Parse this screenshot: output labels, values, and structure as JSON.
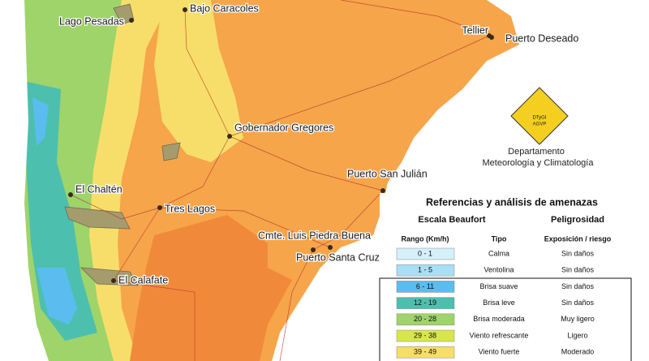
{
  "places": [
    {
      "label": "Lago Pesadas"
    },
    {
      "label": "Bajo Caracoles"
    },
    {
      "label": "Tellier"
    },
    {
      "label": "Puerto Deseado"
    },
    {
      "label": "Gobernador Gregores"
    },
    {
      "label": "Puerto San Julián"
    },
    {
      "label": "El Chaltén"
    },
    {
      "label": "Tres Lagos"
    },
    {
      "label": "Cmte. Luis Piedra Buena"
    },
    {
      "label": "Puerto Santa Cruz"
    },
    {
      "label": "El Calafate"
    }
  ],
  "logo": {
    "lines": [
      "DTyGI",
      "AGVP"
    ]
  },
  "department": {
    "lines": [
      "Departamento",
      "Meteorología y Climatología"
    ]
  },
  "legend": {
    "title": "Referencias y análisis de amenazas",
    "scale_heading": "Escala Beaufort",
    "danger_heading": "Peligrosidad",
    "columns": [
      "Rango (Km/h)",
      "Tipo",
      "Exposición / riesgo"
    ],
    "rows": [
      {
        "range": "0 - 1",
        "type": "Calma",
        "risk": "Sin daños",
        "color": "#d6f0fa"
      },
      {
        "range": "1 - 5",
        "type": "Ventolina",
        "risk": "Sin daños",
        "color": "#a9def5"
      },
      {
        "range": "6 - 11",
        "type": "Brisa suave",
        "risk": "Sin daños",
        "color": "#5bbcef"
      },
      {
        "range": "12 - 19",
        "type": "Brisa leve",
        "risk": "Sin daños",
        "color": "#4dbfae"
      },
      {
        "range": "20 - 28",
        "type": "Brisa moderada",
        "risk": "Muy ligero",
        "color": "#9ed46a"
      },
      {
        "range": "29 - 38",
        "type": "Viento refrescante",
        "risk": "Ligero",
        "color": "#d8e64a"
      },
      {
        "range": "39 - 49",
        "type": "Viento fuerte",
        "risk": "Moderado",
        "color": "#f7de6a"
      }
    ]
  }
}
